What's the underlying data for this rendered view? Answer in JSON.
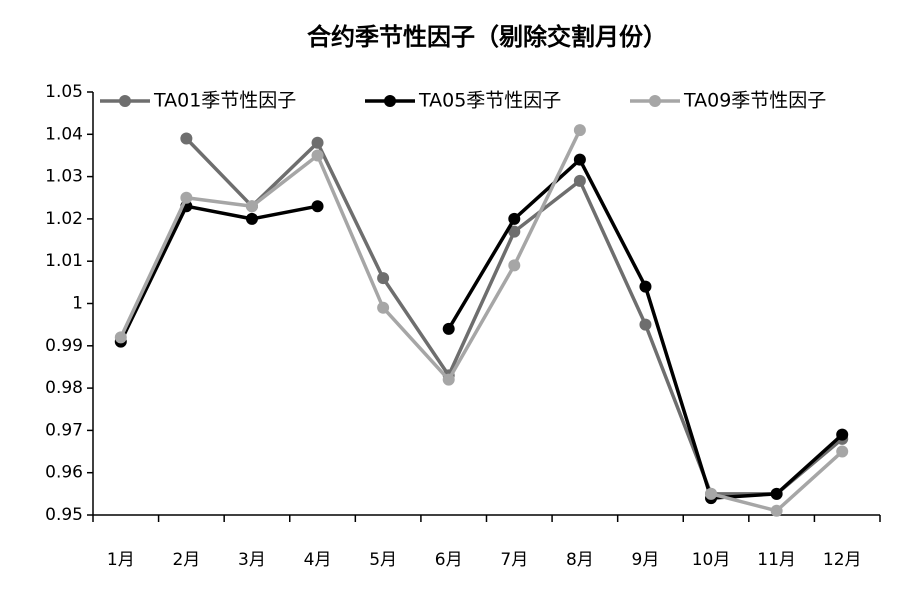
{
  "chart_data": {
    "type": "line",
    "title": "合约季节性因子（剔除交割月份）",
    "categories": [
      "1月",
      "2月",
      "3月",
      "4月",
      "5月",
      "6月",
      "7月",
      "8月",
      "9月",
      "10月",
      "11月",
      "12月"
    ],
    "series": [
      {
        "name": "TA01季节性因子",
        "color": "#6e6e6e",
        "values": [
          null,
          1.039,
          1.023,
          1.038,
          1.006,
          0.983,
          1.017,
          1.029,
          0.995,
          0.955,
          0.955,
          0.968
        ]
      },
      {
        "name": "TA05季节性因子",
        "color": "#000000",
        "values": [
          0.991,
          1.023,
          1.02,
          1.023,
          null,
          0.994,
          1.02,
          1.034,
          1.004,
          0.954,
          0.955,
          0.969
        ]
      },
      {
        "name": "TA09季节性因子",
        "color": "#a6a6a6",
        "values": [
          0.992,
          1.025,
          1.023,
          1.035,
          0.999,
          0.982,
          1.009,
          1.041,
          null,
          0.955,
          0.951,
          0.965
        ]
      }
    ],
    "ylim": [
      0.95,
      1.05
    ],
    "yticks": [
      0.95,
      0.96,
      0.97,
      0.98,
      0.99,
      1,
      1.01,
      1.02,
      1.03,
      1.04,
      1.05
    ],
    "grid": false,
    "legend": "top"
  }
}
